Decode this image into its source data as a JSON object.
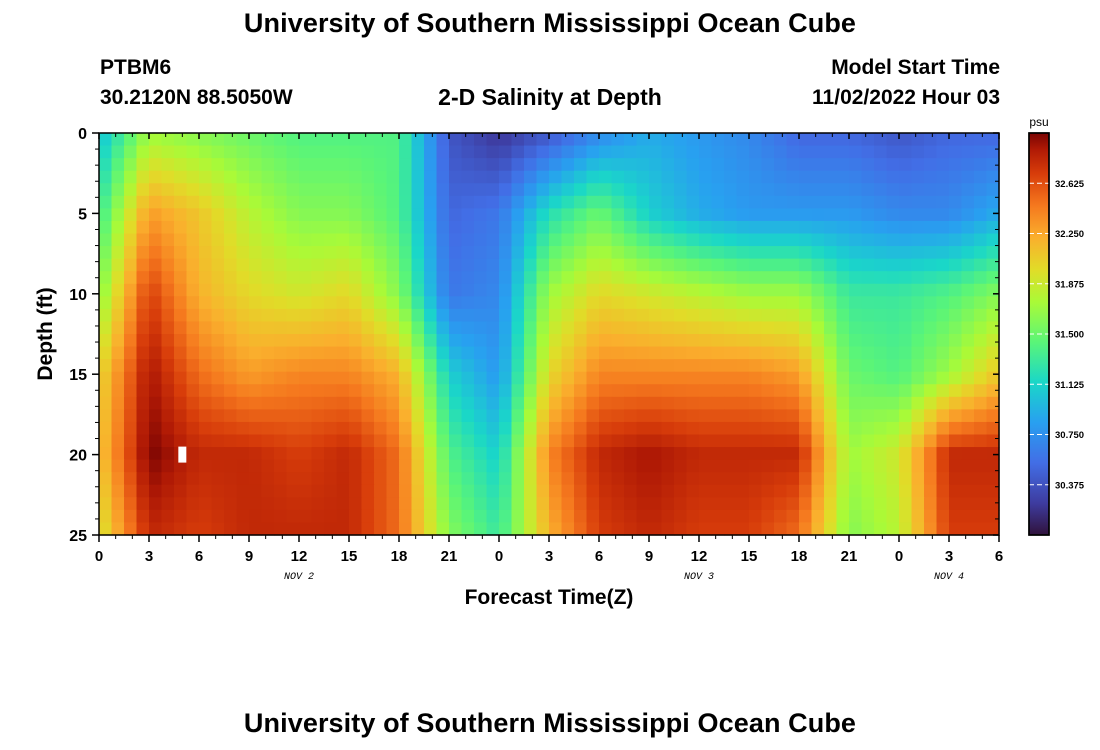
{
  "header": {
    "title": "University of Southern Mississippi Ocean Cube",
    "station": "PTBM6",
    "coordinates": "30.2120N  88.5050W",
    "subtitle": "2-D Salinity at Depth",
    "model_start_label": "Model Start Time",
    "model_start_value": "11/02/2022 Hour 03",
    "footer_title": "University of Southern Mississippi Ocean Cube"
  },
  "chart_data": {
    "type": "heatmap",
    "title": "2-D Salinity at Depth",
    "xlabel": "Forecast Time(Z)",
    "ylabel": "Depth (ft)",
    "x_range_hours": [
      0,
      54
    ],
    "x_ticks": [
      0,
      3,
      6,
      9,
      12,
      15,
      18,
      21,
      24,
      27,
      30,
      33,
      36,
      39,
      42,
      45,
      48,
      51,
      54
    ],
    "x_tick_labels": [
      "0",
      "3",
      "6",
      "9",
      "12",
      "15",
      "18",
      "21",
      "0",
      "3",
      "6",
      "9",
      "12",
      "15",
      "18",
      "21",
      "0",
      "3",
      "6"
    ],
    "day_labels": [
      {
        "text": "NOV 2",
        "hour": 12
      },
      {
        "text": "NOV 3",
        "hour": 36
      },
      {
        "text": "NOV 4",
        "hour": 51
      }
    ],
    "y_range": [
      0,
      25
    ],
    "y_ticks": [
      0,
      5,
      10,
      15,
      20,
      25
    ],
    "y_reversed": true,
    "marker": {
      "hour": 5,
      "depth": 20
    },
    "colorbar": {
      "unit": "psu",
      "min": 30.0,
      "max": 33.0,
      "ticks": [
        30.375,
        30.75,
        31.125,
        31.5,
        31.875,
        32.25,
        32.625
      ],
      "tick_labels": [
        "30.375",
        "30.750",
        "31.125",
        "31.500",
        "31.875",
        "32.250",
        "32.625"
      ],
      "colormap": "turbo"
    },
    "depth_levels": [
      0,
      5,
      10,
      15,
      20,
      25
    ],
    "time_hours": [
      0,
      3,
      6,
      9,
      12,
      15,
      18,
      21,
      24,
      27,
      30,
      33,
      36,
      39,
      42,
      45,
      48,
      51,
      54
    ],
    "salinity": [
      [
        31.0,
        31.7,
        31.6,
        31.5,
        31.4,
        31.4,
        31.4,
        30.4,
        30.2,
        30.4,
        30.7,
        30.9,
        30.8,
        30.7,
        30.5,
        30.5,
        30.4,
        30.5,
        30.5
      ],
      [
        31.3,
        32.3,
        32.1,
        31.8,
        31.6,
        31.6,
        31.4,
        30.5,
        30.6,
        31.2,
        31.5,
        31.1,
        30.9,
        30.8,
        30.8,
        30.8,
        30.7,
        30.7,
        30.9
      ],
      [
        31.6,
        32.7,
        32.2,
        32.0,
        31.9,
        32.0,
        31.6,
        30.6,
        30.7,
        31.7,
        32.0,
        31.9,
        31.8,
        31.7,
        31.7,
        31.3,
        31.3,
        31.4,
        31.6
      ],
      [
        32.0,
        32.9,
        32.5,
        32.3,
        32.4,
        32.4,
        32.2,
        31.1,
        30.8,
        32.0,
        32.4,
        32.4,
        32.4,
        32.4,
        32.3,
        31.5,
        31.4,
        31.7,
        32.1
      ],
      [
        32.1,
        33.0,
        32.8,
        32.8,
        32.7,
        32.8,
        32.5,
        31.4,
        31.1,
        32.4,
        32.8,
        32.9,
        32.8,
        32.8,
        32.8,
        31.7,
        31.9,
        32.8,
        32.8
      ],
      [
        31.9,
        32.8,
        32.7,
        32.8,
        32.8,
        32.8,
        32.5,
        31.6,
        31.3,
        32.2,
        32.7,
        32.8,
        32.7,
        32.7,
        32.5,
        31.6,
        31.8,
        32.7,
        32.7
      ]
    ]
  }
}
